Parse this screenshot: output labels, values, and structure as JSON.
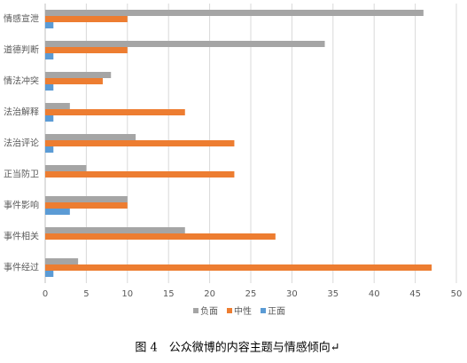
{
  "chart_data": {
    "type": "bar",
    "orientation": "horizontal",
    "categories": [
      "情感宣泄",
      "道德判断",
      "情法冲突",
      "法治解释",
      "法治评论",
      "正当防卫",
      "事件影响",
      "事件相关",
      "事件经过"
    ],
    "series": [
      {
        "name": "负面",
        "color": "#a5a5a5",
        "values": [
          46,
          34,
          8,
          3,
          11,
          5,
          10,
          17,
          4
        ]
      },
      {
        "name": "中性",
        "color": "#ed7d31",
        "values": [
          10,
          10,
          7,
          17,
          23,
          23,
          10,
          28,
          47
        ]
      },
      {
        "name": "正面",
        "color": "#5b9bd5",
        "values": [
          1,
          1,
          1,
          1,
          1,
          0,
          3,
          0,
          1
        ]
      }
    ],
    "xlim": [
      0,
      50
    ],
    "xticks": [
      0,
      5,
      10,
      15,
      20,
      25,
      30,
      35,
      40,
      45,
      50
    ],
    "grid": true,
    "legend": "bottom",
    "caption": "图 4　公众微博的内容主题与情感倾向↵"
  }
}
